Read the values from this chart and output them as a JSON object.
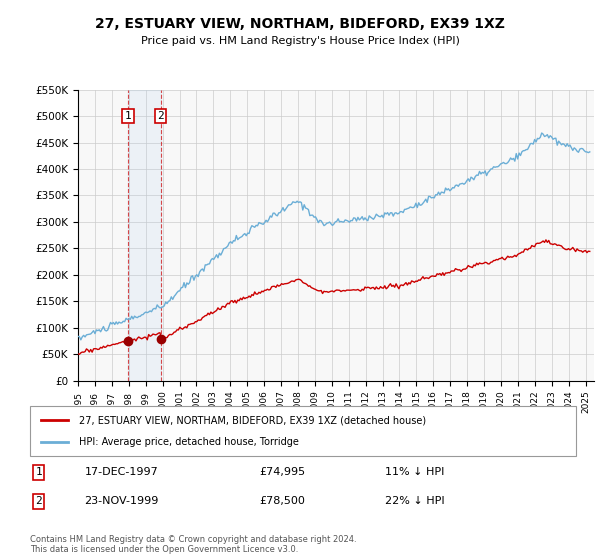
{
  "title": "27, ESTUARY VIEW, NORTHAM, BIDEFORD, EX39 1XZ",
  "subtitle": "Price paid vs. HM Land Registry's House Price Index (HPI)",
  "ylabel_max": 550000,
  "yticks": [
    0,
    50000,
    100000,
    150000,
    200000,
    250000,
    300000,
    350000,
    400000,
    450000,
    500000,
    550000
  ],
  "ytick_labels": [
    "£0",
    "£50K",
    "£100K",
    "£150K",
    "£200K",
    "£250K",
    "£300K",
    "£350K",
    "£400K",
    "£450K",
    "£500K",
    "£550K"
  ],
  "xmin": 1995.0,
  "xmax": 2025.5,
  "line_color_hpi": "#6baed6",
  "line_color_price": "#cc0000",
  "marker_color": "#990000",
  "sale1_x": 1997.96,
  "sale1_y": 74995,
  "sale2_x": 1999.9,
  "sale2_y": 78500,
  "sale1_label": "1",
  "sale2_label": "2",
  "legend_label_red": "27, ESTUARY VIEW, NORTHAM, BIDEFORD, EX39 1XZ (detached house)",
  "legend_label_blue": "HPI: Average price, detached house, Torridge",
  "transaction1_num": "1",
  "transaction1_date": "17-DEC-1997",
  "transaction1_price": "£74,995",
  "transaction1_hpi": "11% ↓ HPI",
  "transaction2_num": "2",
  "transaction2_date": "23-NOV-1999",
  "transaction2_price": "£78,500",
  "transaction2_hpi": "22% ↓ HPI",
  "footnote": "Contains HM Land Registry data © Crown copyright and database right 2024.\nThis data is licensed under the Open Government Licence v3.0.",
  "background_color": "#ffffff",
  "grid_color": "#cccccc",
  "shade_color": "#ddeeff"
}
